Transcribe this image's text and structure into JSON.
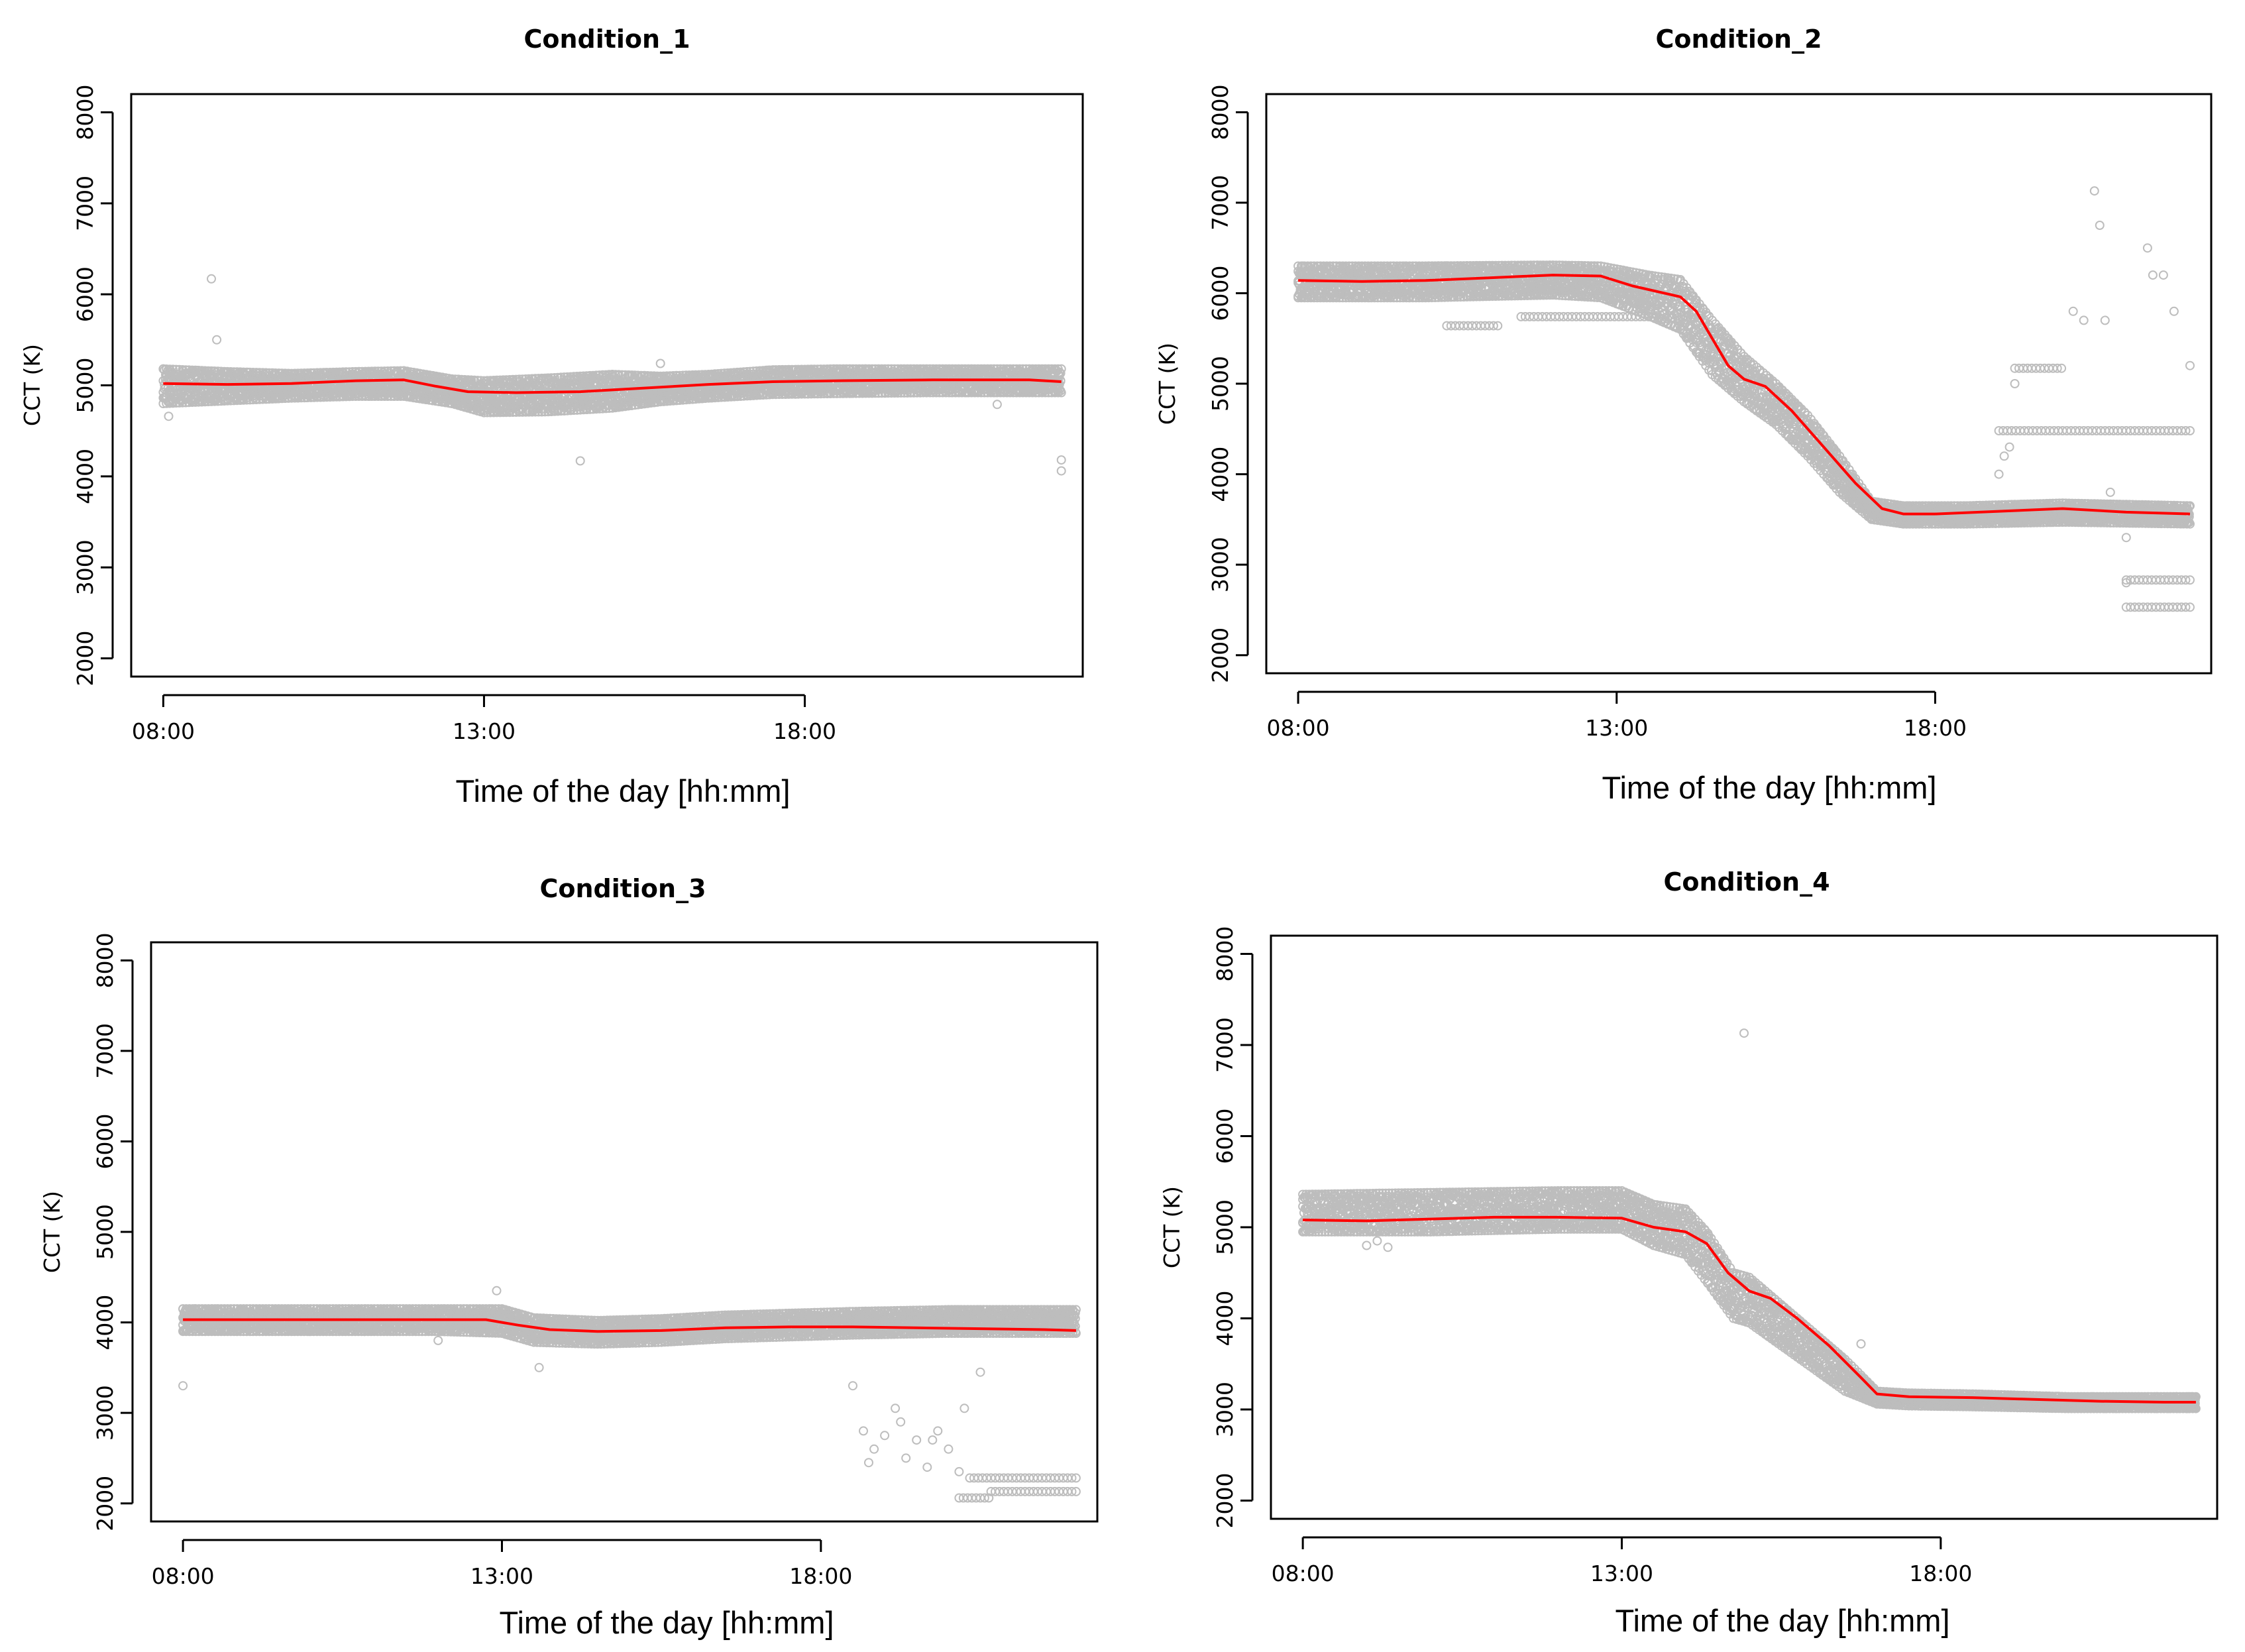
{
  "chart_data": [
    {
      "type": "scatter",
      "title": "Condition_1",
      "xlabel": "Time of the day [hh:mm]",
      "ylabel": "CCT (K)",
      "xlim": [
        "07:30",
        "22:20"
      ],
      "ylim": [
        1800,
        8200
      ],
      "x_ticks": [
        "08:00",
        "13:00",
        "18:00"
      ],
      "y_ticks": [
        "2000",
        "3000",
        "4000",
        "5000",
        "6000",
        "7000",
        "8000"
      ],
      "grid": false,
      "legend": "none",
      "point_color": "#bdbdbd",
      "line_color": "#ff0000",
      "series": [
        {
          "kind": "band",
          "x": [
            "08:00",
            "09:00",
            "10:00",
            "11:00",
            "11:45",
            "12:30",
            "13:00",
            "14:00",
            "15:00",
            "15:45",
            "16:30",
            "17:30",
            "18:30",
            "20:00",
            "21:30",
            "22:00"
          ],
          "upper": [
            5180,
            5150,
            5130,
            5150,
            5160,
            5070,
            5050,
            5080,
            5120,
            5100,
            5120,
            5170,
            5180,
            5180,
            5180,
            5180
          ],
          "lower": [
            4800,
            4830,
            4860,
            4880,
            4880,
            4800,
            4700,
            4710,
            4750,
            4820,
            4860,
            4900,
            4910,
            4920,
            4920,
            4920
          ]
        },
        {
          "kind": "smooth",
          "x": [
            "08:00",
            "09:00",
            "10:00",
            "11:00",
            "11:45",
            "12:15",
            "12:45",
            "13:30",
            "14:30",
            "15:30",
            "16:30",
            "17:30",
            "18:30",
            "20:00",
            "21:30",
            "22:00"
          ],
          "y": [
            5020,
            5010,
            5020,
            5050,
            5060,
            4990,
            4930,
            4920,
            4930,
            4970,
            5010,
            5040,
            5050,
            5060,
            5060,
            5040
          ]
        },
        {
          "kind": "outliers",
          "x": [
            "08:05",
            "08:45",
            "08:50",
            "14:30",
            "15:45",
            "21:00",
            "22:00",
            "22:00"
          ],
          "y": [
            4660,
            6170,
            5500,
            4170,
            5240,
            4790,
            4180,
            4060
          ]
        }
      ]
    },
    {
      "type": "scatter",
      "title": "Condition_2",
      "xlabel": "Time of the day [hh:mm]",
      "ylabel": "CCT (K)",
      "xlim": [
        "07:30",
        "22:20"
      ],
      "ylim": [
        1800,
        8200
      ],
      "x_ticks": [
        "08:00",
        "13:00",
        "18:00"
      ],
      "y_ticks": [
        "2000",
        "3000",
        "4000",
        "5000",
        "6000",
        "7000",
        "8000"
      ],
      "grid": false,
      "legend": "none",
      "point_color": "#bdbdbd",
      "line_color": "#ff0000",
      "series": [
        {
          "kind": "band",
          "x": [
            "08:00",
            "10:00",
            "12:00",
            "12:45",
            "13:30",
            "14:00",
            "14:30",
            "15:00",
            "15:30",
            "16:00",
            "16:30",
            "17:00",
            "17:30",
            "18:30",
            "20:00",
            "22:00"
          ],
          "upper": [
            6300,
            6300,
            6310,
            6300,
            6200,
            6150,
            5700,
            5300,
            5000,
            4650,
            4200,
            3700,
            3650,
            3650,
            3680,
            3650
          ],
          "lower": [
            5950,
            5950,
            5980,
            5950,
            5750,
            5600,
            5100,
            4800,
            4550,
            4200,
            3800,
            3500,
            3450,
            3450,
            3470,
            3450
          ]
        },
        {
          "kind": "smooth",
          "x": [
            "08:00",
            "09:00",
            "10:00",
            "11:00",
            "12:00",
            "12:45",
            "13:15",
            "13:45",
            "14:00",
            "14:15",
            "14:30",
            "14:45",
            "15:00",
            "15:20",
            "15:45",
            "16:15",
            "16:45",
            "17:10",
            "17:30",
            "18:00",
            "19:00",
            "20:00",
            "21:00",
            "22:00"
          ],
          "y": [
            6140,
            6130,
            6140,
            6170,
            6200,
            6190,
            6080,
            6000,
            5960,
            5800,
            5500,
            5200,
            5050,
            4970,
            4700,
            4300,
            3900,
            3620,
            3560,
            3560,
            3590,
            3620,
            3580,
            3560
          ]
        },
        {
          "kind": "outliers",
          "x": [
            "19:00",
            "19:05",
            "19:10",
            "19:15",
            "20:30",
            "20:35",
            "21:20",
            "21:45",
            "22:00",
            "20:10",
            "20:20",
            "20:40",
            "21:25",
            "21:35",
            "20:45",
            "21:00",
            "21:00"
          ],
          "y": [
            4000,
            4200,
            4300,
            5000,
            7130,
            6750,
            6500,
            5800,
            5200,
            5800,
            5700,
            5700,
            6200,
            6200,
            3800,
            3300,
            2800
          ]
        },
        {
          "kind": "row",
          "x_start": "19:00",
          "x_end": "22:00",
          "y": 4480
        },
        {
          "kind": "row",
          "x_start": "19:15",
          "x_end": "20:00",
          "y": 5170
        },
        {
          "kind": "row",
          "x_start": "21:00",
          "x_end": "22:00",
          "y": 2830
        },
        {
          "kind": "row",
          "x_start": "21:00",
          "x_end": "22:00",
          "y": 2530
        },
        {
          "kind": "row",
          "x_start": "10:20",
          "x_end": "11:10",
          "y": 5640
        },
        {
          "kind": "row",
          "x_start": "11:30",
          "x_end": "13:30",
          "y": 5740
        }
      ]
    },
    {
      "type": "scatter",
      "title": "Condition_3",
      "xlabel": "Time of the day [hh:mm]",
      "ylabel": "CCT (K)",
      "xlim": [
        "07:30",
        "22:20"
      ],
      "ylim": [
        1800,
        8200
      ],
      "x_ticks": [
        "08:00",
        "13:00",
        "18:00"
      ],
      "y_ticks": [
        "2000",
        "3000",
        "4000",
        "5000",
        "6000",
        "7000",
        "8000"
      ],
      "grid": false,
      "legend": "none",
      "point_color": "#bdbdbd",
      "line_color": "#ff0000",
      "series": [
        {
          "kind": "band",
          "x": [
            "08:00",
            "10:00",
            "12:00",
            "13:00",
            "13:30",
            "14:30",
            "15:30",
            "16:30",
            "17:30",
            "18:30",
            "20:00",
            "22:00"
          ],
          "upper": [
            4150,
            4150,
            4150,
            4150,
            4050,
            4020,
            4040,
            4080,
            4100,
            4120,
            4140,
            4140
          ],
          "lower": [
            3900,
            3900,
            3900,
            3880,
            3780,
            3760,
            3780,
            3820,
            3840,
            3860,
            3880,
            3880
          ]
        },
        {
          "kind": "smooth",
          "x": [
            "08:00",
            "09:00",
            "10:00",
            "11:00",
            "12:00",
            "12:45",
            "13:15",
            "13:45",
            "14:30",
            "15:30",
            "16:30",
            "17:30",
            "18:30",
            "19:30",
            "20:30",
            "21:30",
            "22:00"
          ],
          "y": [
            4030,
            4030,
            4030,
            4030,
            4030,
            4030,
            3970,
            3920,
            3900,
            3910,
            3940,
            3950,
            3950,
            3940,
            3930,
            3920,
            3910
          ]
        },
        {
          "kind": "outliers",
          "x": [
            "08:00",
            "12:00",
            "12:55",
            "13:35",
            "18:30",
            "18:40",
            "18:50",
            "19:00",
            "19:10",
            "19:20",
            "19:30",
            "19:40",
            "19:50",
            "20:00",
            "20:10",
            "18:45",
            "19:15",
            "19:45",
            "20:15",
            "20:30"
          ],
          "y": [
            3300,
            3800,
            4350,
            3500,
            3300,
            2800,
            2600,
            2750,
            3050,
            2500,
            2700,
            2400,
            2800,
            2600,
            2350,
            2450,
            2900,
            2700,
            3050,
            3450
          ]
        },
        {
          "kind": "row",
          "x_start": "20:20",
          "x_end": "22:00",
          "y": 2280
        },
        {
          "kind": "row",
          "x_start": "20:40",
          "x_end": "22:00",
          "y": 2130
        },
        {
          "kind": "row",
          "x_start": "20:10",
          "x_end": "20:40",
          "y": 2060
        }
      ]
    },
    {
      "type": "scatter",
      "title": "Condition_4",
      "xlabel": "Time of the day [hh:mm]",
      "ylabel": "CCT (K)",
      "xlim": [
        "07:30",
        "22:20"
      ],
      "ylim": [
        1800,
        8200
      ],
      "x_ticks": [
        "08:00",
        "13:00",
        "18:00"
      ],
      "y_ticks": [
        "2000",
        "3000",
        "4000",
        "5000",
        "6000",
        "7000",
        "8000"
      ],
      "grid": false,
      "legend": "none",
      "point_color": "#bdbdbd",
      "line_color": "#ff0000",
      "series": [
        {
          "kind": "band",
          "x": [
            "08:00",
            "10:00",
            "12:00",
            "13:00",
            "13:30",
            "14:00",
            "14:20",
            "14:45",
            "15:00",
            "15:30",
            "16:00",
            "16:30",
            "17:00",
            "17:30",
            "18:30",
            "20:00",
            "22:00"
          ],
          "upper": [
            5360,
            5380,
            5400,
            5400,
            5250,
            5200,
            4950,
            4500,
            4450,
            4150,
            3850,
            3550,
            3200,
            3180,
            3170,
            3140,
            3140
          ],
          "lower": [
            4950,
            4950,
            4980,
            4980,
            4800,
            4700,
            4400,
            4000,
            3950,
            3700,
            3450,
            3200,
            3060,
            3040,
            3030,
            3010,
            3010
          ]
        },
        {
          "kind": "smooth",
          "x": [
            "08:00",
            "09:00",
            "10:00",
            "11:00",
            "12:00",
            "13:00",
            "13:30",
            "14:00",
            "14:20",
            "14:40",
            "15:00",
            "15:20",
            "15:45",
            "16:15",
            "16:45",
            "17:00",
            "17:30",
            "18:30",
            "19:30",
            "20:30",
            "21:30",
            "22:00"
          ],
          "y": [
            5080,
            5070,
            5090,
            5110,
            5110,
            5100,
            5000,
            4950,
            4820,
            4500,
            4300,
            4220,
            4000,
            3700,
            3350,
            3170,
            3140,
            3130,
            3110,
            3090,
            3080,
            3080
          ]
        },
        {
          "kind": "outliers",
          "x": [
            "14:55",
            "16:45",
            "09:00",
            "09:10",
            "09:20"
          ],
          "y": [
            7130,
            3720,
            4800,
            4850,
            4780
          ]
        }
      ]
    }
  ]
}
